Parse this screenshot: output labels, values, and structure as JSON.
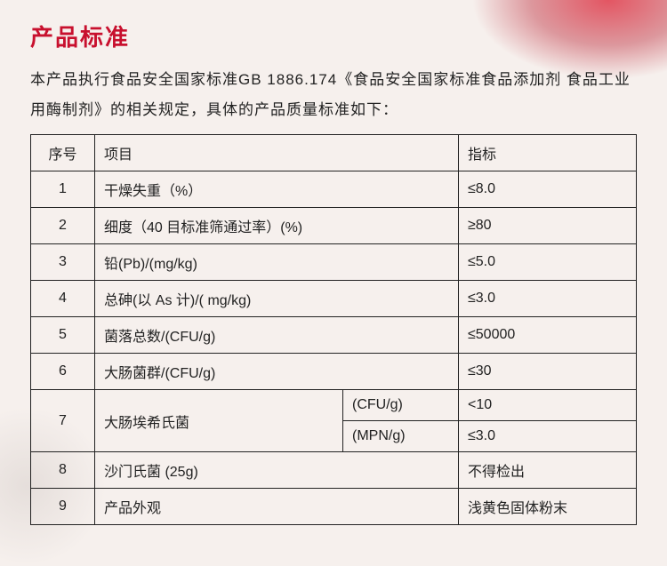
{
  "title": "产品标准",
  "intro": "本产品执行食品安全国家标准GB 1886.174《食品安全国家标准食品添加剂 食品工业用酶制剂》的相关规定，具体的产品质量标准如下：",
  "headers": {
    "seq": "序号",
    "item": "项目",
    "spec": "指标"
  },
  "rows": [
    {
      "seq": "1",
      "item": "干燥失重（%）",
      "spec": "≤8.0"
    },
    {
      "seq": "2",
      "item": "细度（40 目标准筛通过率）(%)",
      "spec": "≥80"
    },
    {
      "seq": "3",
      "item": "铅(Pb)/(mg/kg)",
      "spec": "≤5.0"
    },
    {
      "seq": "4",
      "item": "总砷(以 As 计)/( mg/kg)",
      "spec": "≤3.0"
    },
    {
      "seq": "5",
      "item": "菌落总数/(CFU/g)",
      "spec": "≤50000"
    },
    {
      "seq": "6",
      "item": "大肠菌群/(CFU/g)",
      "spec": "≤30"
    }
  ],
  "row7": {
    "seq": "7",
    "item": "大肠埃希氏菌",
    "sub1": "(CFU/g)",
    "spec1": "<10",
    "sub2": "(MPN/g)",
    "spec2": "≤3.0"
  },
  "rows_after": [
    {
      "seq": "8",
      "item": "沙门氏菌 (25g)",
      "spec": "不得检出"
    },
    {
      "seq": "9",
      "item": "产品外观",
      "spec": "浅黄色固体粉末"
    }
  ],
  "colors": {
    "title": "#c8102e",
    "text": "#222222",
    "border": "#222222",
    "bg": "#f6f0ed",
    "accent": "#e03a4a"
  }
}
